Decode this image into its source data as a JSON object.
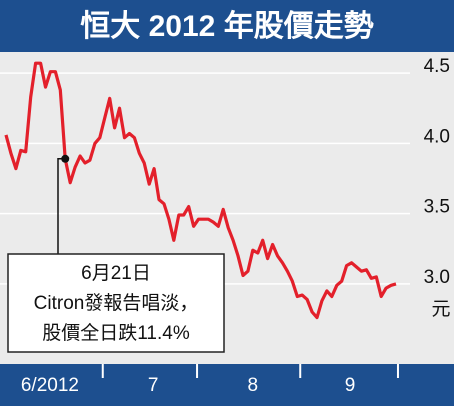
{
  "chart_data": {
    "type": "line",
    "title": "恒大 2012 年股價走勢",
    "series": [
      {
        "name": null,
        "color": "#e3202b",
        "values": [
          4.06,
          3.93,
          3.82,
          3.95,
          3.94,
          4.33,
          4.57,
          4.57,
          4.4,
          4.51,
          4.51,
          4.38,
          3.89,
          3.72,
          3.83,
          3.91,
          3.86,
          3.88,
          4.0,
          4.04,
          4.18,
          4.32,
          4.11,
          4.25,
          4.04,
          4.07,
          4.04,
          3.93,
          3.86,
          3.71,
          3.82,
          3.6,
          3.57,
          3.46,
          3.31,
          3.49,
          3.49,
          3.55,
          3.41,
          3.46,
          3.46,
          3.46,
          3.44,
          3.41,
          3.53,
          3.4,
          3.31,
          3.2,
          3.06,
          3.09,
          3.24,
          3.22,
          3.31,
          3.18,
          3.28,
          3.2,
          3.15,
          3.09,
          3.02,
          2.91,
          2.92,
          2.89,
          2.8,
          2.76,
          2.88,
          2.95,
          2.91,
          2.99,
          3.02,
          3.13,
          3.15,
          3.12,
          3.09,
          3.1,
          3.04,
          3.05,
          2.91,
          2.97,
          2.99,
          3.0
        ]
      }
    ],
    "xlim": [
      0,
      79
    ],
    "xticks": [
      19.6,
      38.7,
      59.6,
      79.4
    ],
    "x_labels": [
      {
        "value": 8.9,
        "label": "6/2012"
      },
      {
        "value": 29.8,
        "label": "7"
      },
      {
        "value": 50.0,
        "label": "8"
      },
      {
        "value": 69.7,
        "label": "9"
      }
    ],
    "ylim": [
      2.43,
      4.65
    ],
    "yticks": [
      {
        "value": 3,
        "label": "3.0"
      },
      3.5,
      {
        "value": 4,
        "label": "4.0"
      },
      4.5
    ],
    "y_unit": "元",
    "grid": true,
    "annotation": [
      "6月21日",
      "Citron發報告唱淡，",
      "股價全日跌11.4%"
    ]
  }
}
